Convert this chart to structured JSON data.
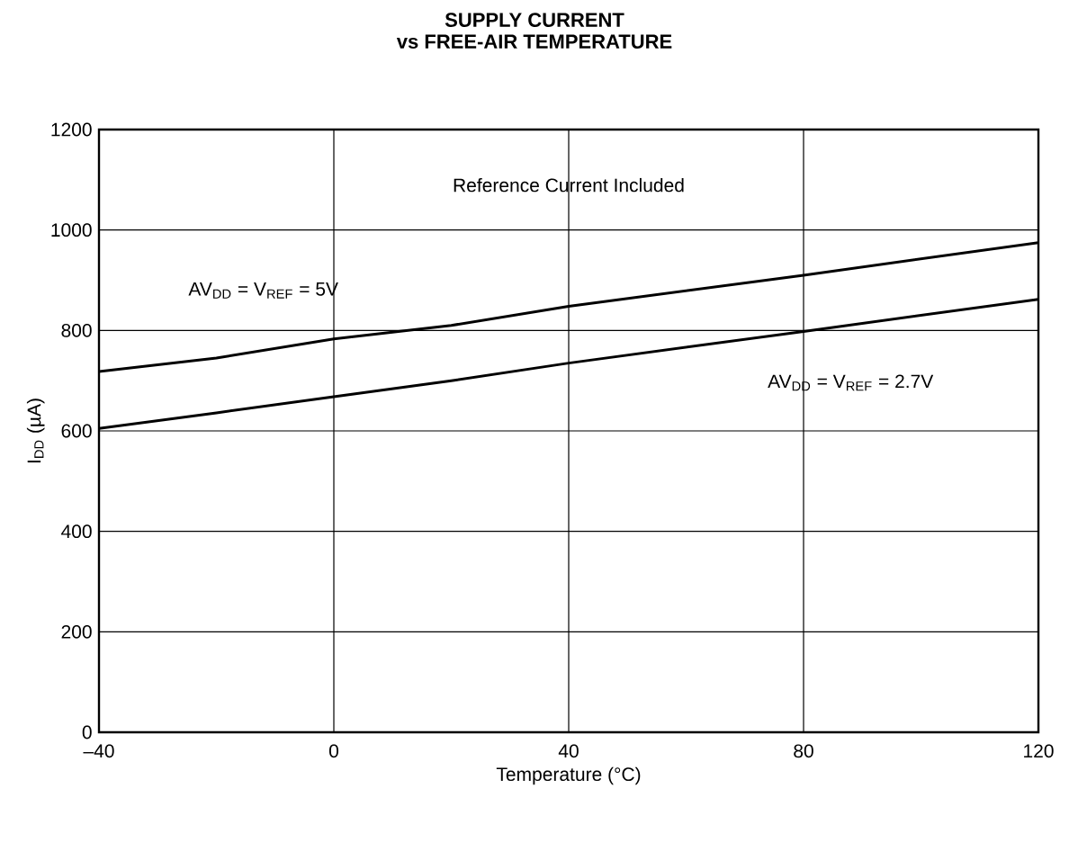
{
  "chart_data": {
    "type": "line",
    "title": "SUPPLY CURRENT",
    "subtitle": "vs FREE-AIR TEMPERATURE",
    "xlabel": "Temperature (°C)",
    "ylabel": "I$_{DD}$ (µA)",
    "x": [
      -40,
      -20,
      0,
      20,
      40,
      80,
      120
    ],
    "series": [
      {
        "name": "AV$_{DD}$ = V$_{REF}$ = 5V",
        "color": "#000000",
        "values": [
          718,
          745,
          783,
          810,
          848,
          910,
          975
        ]
      },
      {
        "name": "AV$_{DD}$ = V$_{REF}$ = 2.7V",
        "color": "#000000",
        "values": [
          605,
          636,
          668,
          700,
          735,
          798,
          862
        ]
      }
    ],
    "annotations": [
      "Reference Current Included"
    ],
    "xlim": [
      -40,
      120
    ],
    "ylim": [
      0,
      1200
    ],
    "xticks": [
      {
        "value": -40,
        "label": "–40"
      },
      0,
      40,
      80,
      120
    ],
    "yticks": [
      0,
      200,
      400,
      600,
      800,
      1000,
      1200
    ],
    "grid": true,
    "marker": "none",
    "line_style": "solid"
  }
}
